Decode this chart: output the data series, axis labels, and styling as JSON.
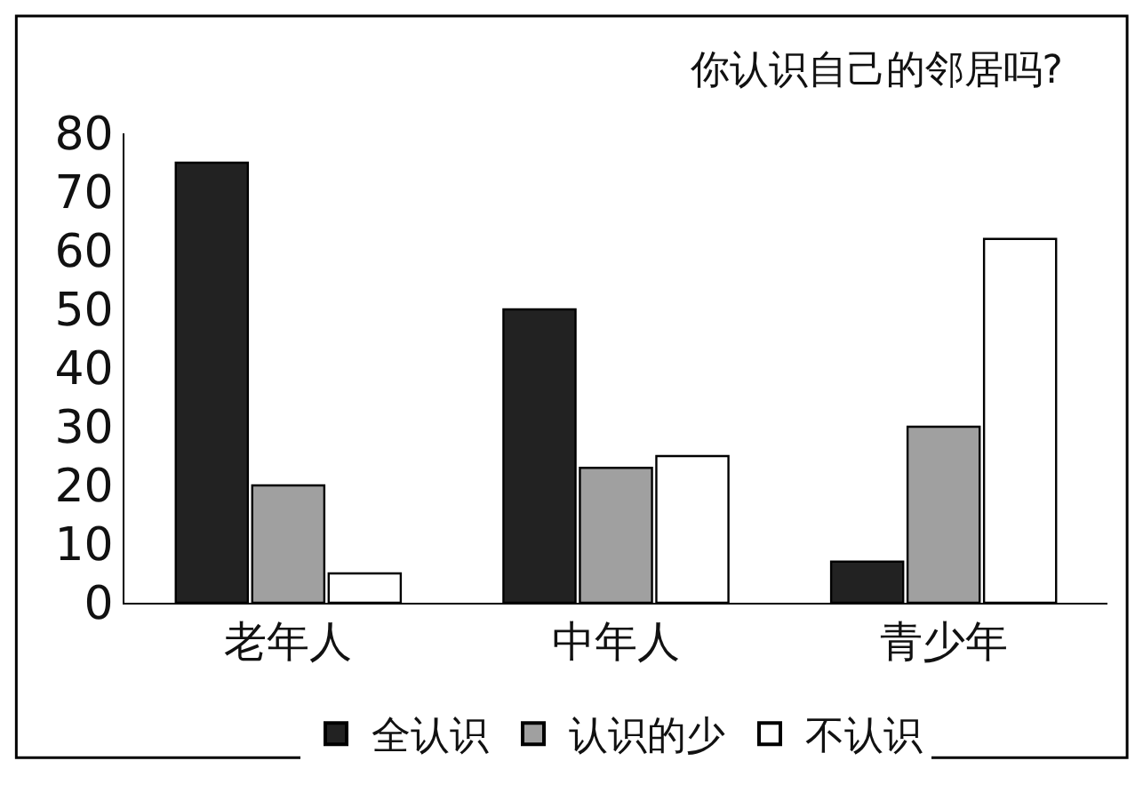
{
  "chart_data": {
    "type": "bar",
    "title": "你认识自己的邻居吗?",
    "categories": [
      "老年人",
      "中年人",
      "青少年"
    ],
    "series": [
      {
        "name": "全认识",
        "color": "#222222",
        "values": [
          75,
          50,
          7
        ]
      },
      {
        "name": "认识的少",
        "color": "#a0a0a0",
        "values": [
          20,
          23,
          30
        ]
      },
      {
        "name": "不认识",
        "color": "#ffffff",
        "values": [
          5,
          25,
          62
        ]
      }
    ],
    "ylim": [
      0,
      80
    ],
    "yticks": [
      0,
      10,
      20,
      30,
      40,
      50,
      60,
      70,
      80
    ],
    "legend": "bottom"
  }
}
